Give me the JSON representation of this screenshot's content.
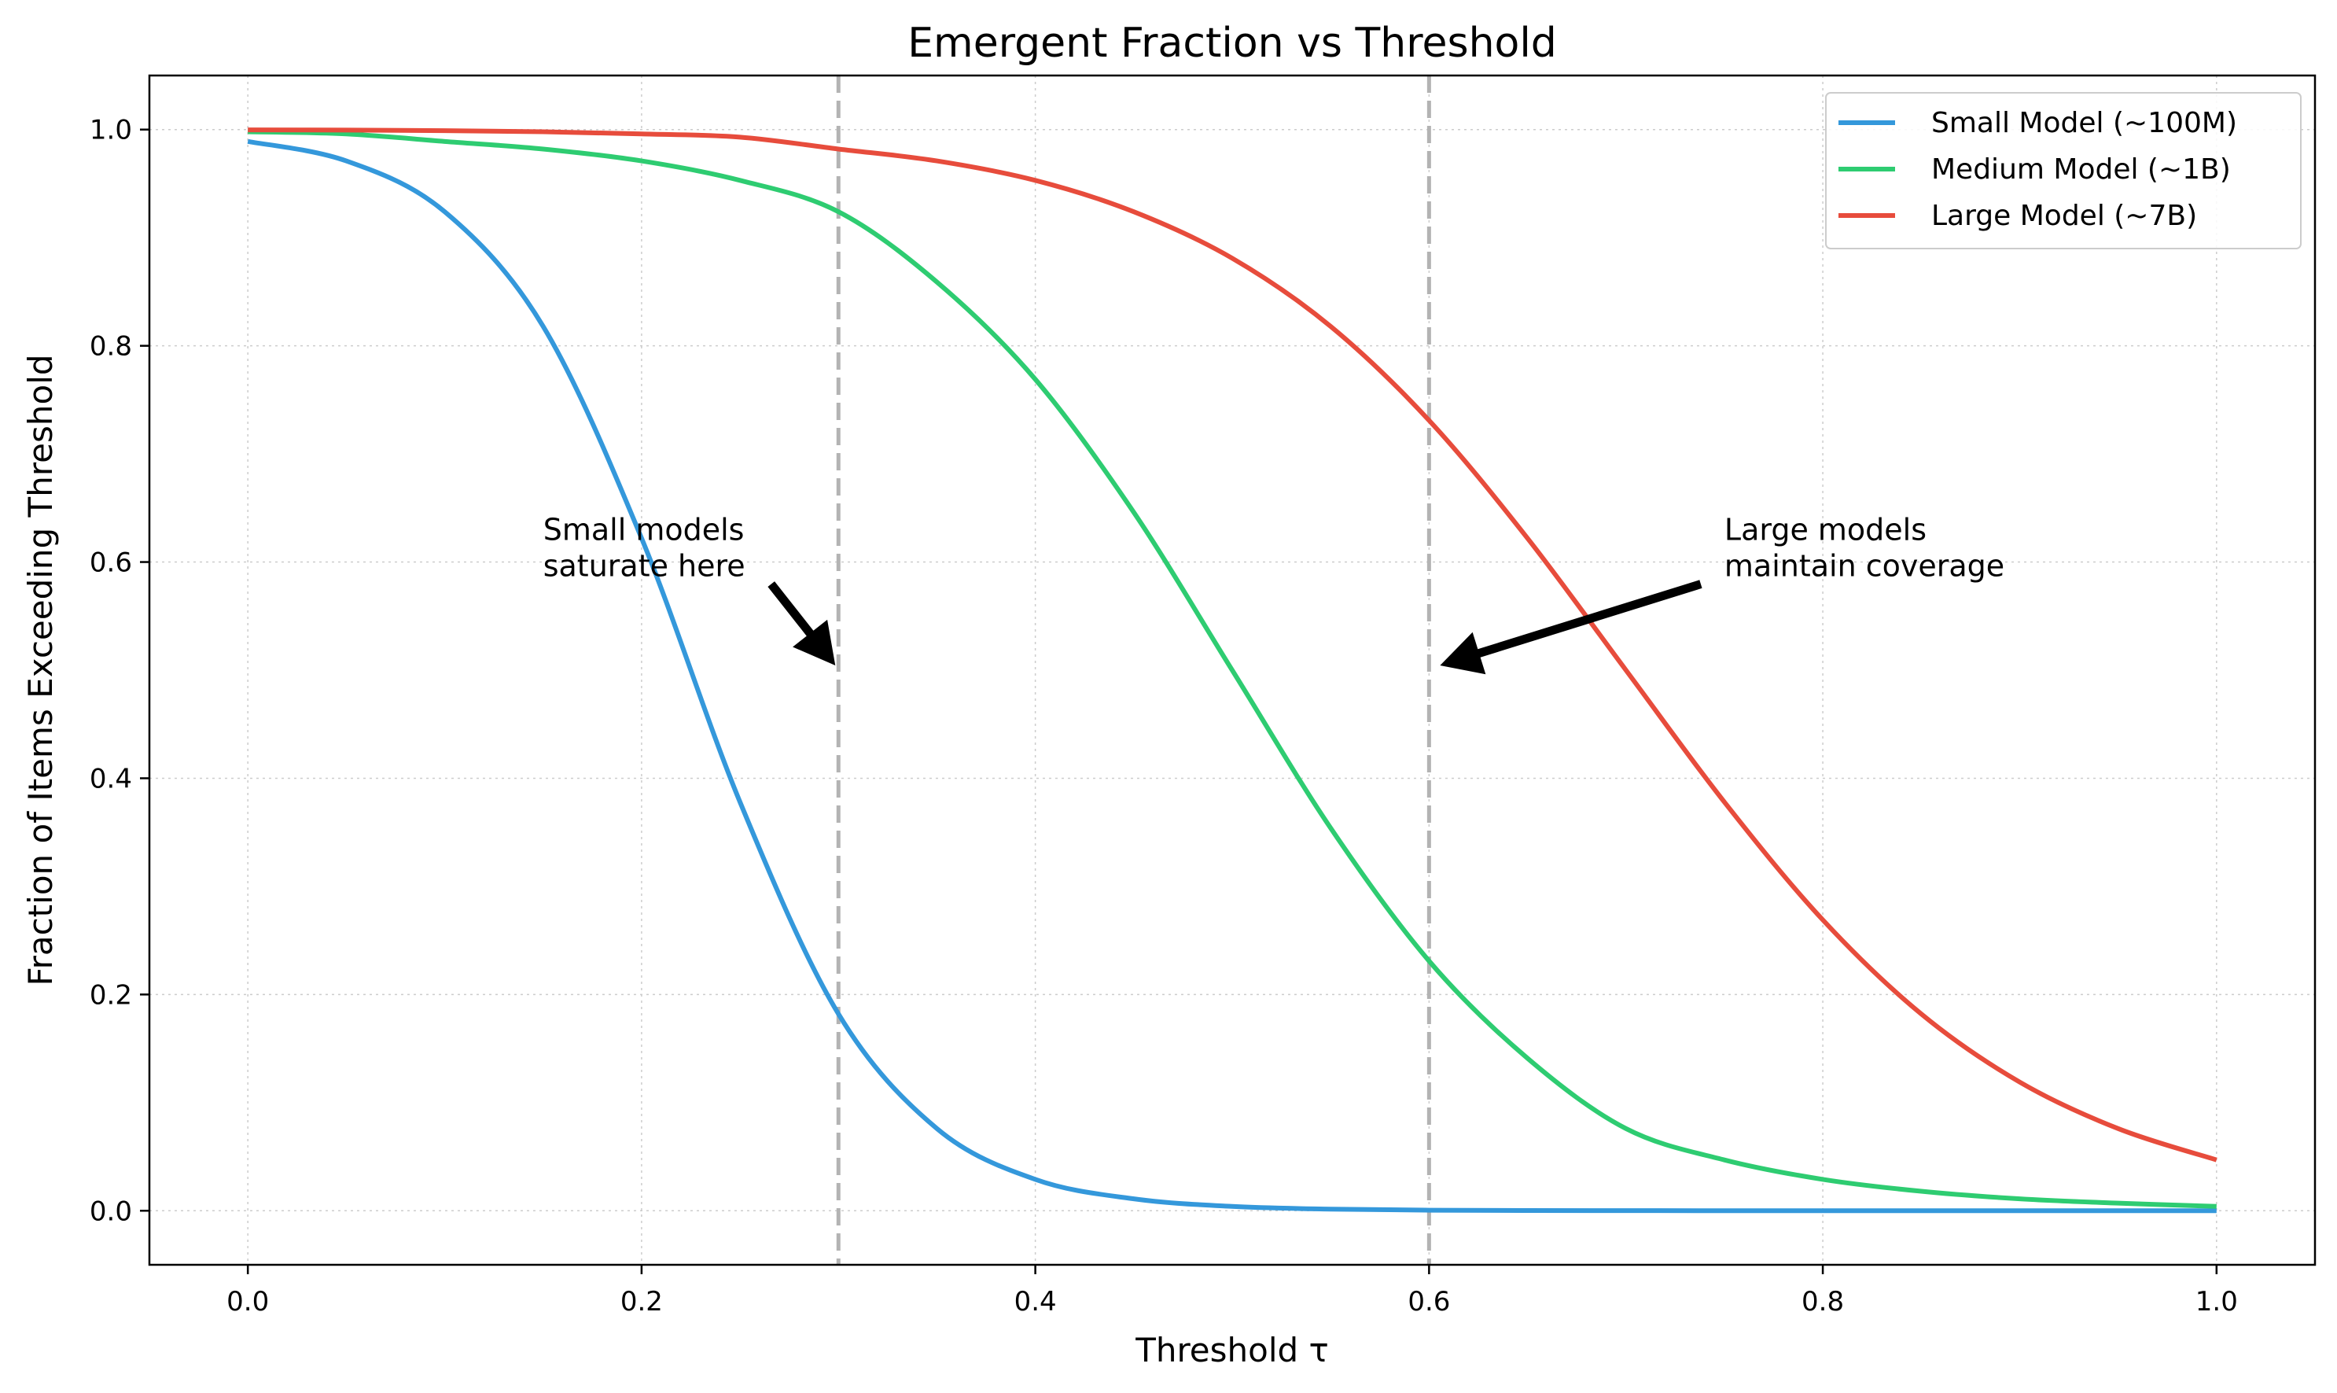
{
  "chart_data": {
    "type": "line",
    "title": "Emergent Fraction vs Threshold",
    "xlabel": "Threshold τ",
    "ylabel": "Fraction of Items Exceeding Threshold",
    "xlim": [
      -0.05,
      1.05
    ],
    "ylim": [
      -0.05,
      1.05
    ],
    "xticks": [
      "0.0",
      "0.2",
      "0.4",
      "0.6",
      "0.8",
      "1.0"
    ],
    "yticks": [
      "0.0",
      "0.2",
      "0.4",
      "0.6",
      "0.8",
      "1.0"
    ],
    "grid": true,
    "legend_position": "top-right",
    "x": [
      0.0,
      0.05,
      0.1,
      0.15,
      0.2,
      0.25,
      0.3,
      0.35,
      0.4,
      0.45,
      0.5,
      0.55,
      0.6,
      0.65,
      0.7,
      0.75,
      0.8,
      0.85,
      0.9,
      0.95,
      1.0
    ],
    "series": [
      {
        "name": "Small Model (~100M)",
        "color": "#3498db",
        "values": [
          0.989,
          0.971,
          0.924,
          0.818,
          0.622,
          0.378,
          0.182,
          0.076,
          0.029,
          0.011,
          0.004,
          0.0015,
          0.0005,
          0.0002,
          0.0001,
          0.0,
          0.0,
          0.0,
          0.0,
          0.0,
          0.0
        ]
      },
      {
        "name": "Medium Model (~1B)",
        "color": "#2ecc71",
        "values": [
          0.998,
          0.996,
          0.989,
          0.982,
          0.971,
          0.953,
          0.924,
          0.859,
          0.769,
          0.646,
          0.5,
          0.354,
          0.231,
          0.141,
          0.076,
          0.047,
          0.029,
          0.018,
          0.011,
          0.007,
          0.004
        ]
      },
      {
        "name": "Large Model (~7B)",
        "color": "#e74c3c",
        "values": [
          0.9997,
          0.9995,
          0.999,
          0.998,
          0.996,
          0.993,
          0.982,
          0.971,
          0.953,
          0.924,
          0.881,
          0.818,
          0.731,
          0.622,
          0.5,
          0.378,
          0.269,
          0.182,
          0.119,
          0.076,
          0.047
        ]
      }
    ],
    "vlines": [
      0.3,
      0.6
    ],
    "annotations": [
      {
        "text_lines": [
          "Small models",
          "saturate here"
        ],
        "text_at": [
          0.15,
          0.6
        ],
        "arrow_to": [
          0.3,
          0.5
        ]
      },
      {
        "text_lines": [
          "Large models",
          "maintain coverage"
        ],
        "text_at": [
          0.75,
          0.6
        ],
        "arrow_to": [
          0.6,
          0.5
        ]
      }
    ]
  }
}
